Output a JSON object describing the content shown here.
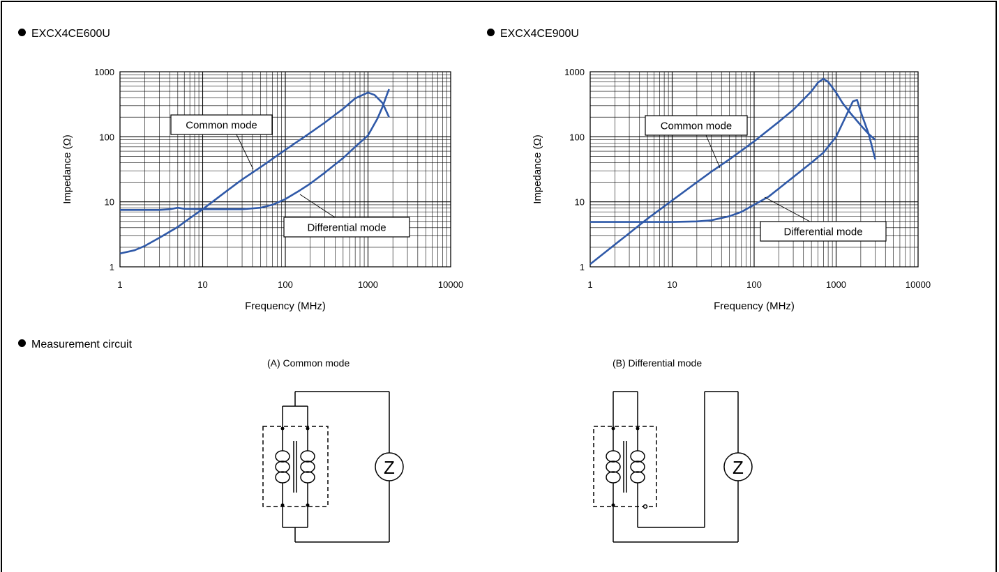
{
  "sections": {
    "chart_left_title": "EXCX4CE600U",
    "chart_right_title": "EXCX4CE900U",
    "circuit_title": "Measurement circuit"
  },
  "circuits": {
    "common_caption": "(A) Common mode",
    "differential_caption": "(B) Differential mode",
    "meter_symbol": "Z"
  },
  "colors": {
    "curve": "#2F59A8",
    "grid": "#000000"
  },
  "chart_data": [
    {
      "type": "line",
      "title": "EXCX4CE600U",
      "xlabel": "Frequency (MHz)",
      "ylabel": "Impedance (Ω)",
      "xscale": "log",
      "yscale": "log",
      "xlim": [
        1,
        10000
      ],
      "ylim": [
        1,
        1000
      ],
      "xticks": [
        "1",
        "10",
        "100",
        "1000",
        "10000"
      ],
      "yticks": [
        "1",
        "10",
        "100",
        "1000"
      ],
      "grid": true,
      "series": [
        {
          "name": "Common mode",
          "x": [
            1,
            1.5,
            2,
            3,
            5,
            7,
            10,
            20,
            30,
            50,
            100,
            200,
            300,
            500,
            700,
            1000,
            1200,
            1500,
            1800
          ],
          "y": [
            1.6,
            1.8,
            2.1,
            2.8,
            4.1,
            5.6,
            7.7,
            15,
            22,
            34,
            63,
            115,
            165,
            270,
            390,
            480,
            440,
            330,
            200
          ]
        },
        {
          "name": "Differential mode",
          "x": [
            1,
            2,
            3,
            4,
            5,
            6,
            10,
            20,
            30,
            50,
            70,
            100,
            150,
            200,
            300,
            500,
            700,
            1000,
            1300,
            1500,
            1700,
            1800
          ],
          "y": [
            7.5,
            7.5,
            7.5,
            7.7,
            8.1,
            7.8,
            7.7,
            7.7,
            7.7,
            8.1,
            9,
            11,
            15,
            19,
            28,
            47,
            70,
            105,
            190,
            290,
            450,
            540
          ]
        }
      ],
      "annotations": [
        "Common mode",
        "Differential mode"
      ]
    },
    {
      "type": "line",
      "title": "EXCX4CE900U",
      "xlabel": "Frequency (MHz)",
      "ylabel": "Impedance (Ω)",
      "xscale": "log",
      "yscale": "log",
      "xlim": [
        1,
        10000
      ],
      "ylim": [
        1,
        1000
      ],
      "xticks": [
        "1",
        "10",
        "100",
        "1000",
        "10000"
      ],
      "yticks": [
        "1",
        "10",
        "100",
        "1000"
      ],
      "grid": true,
      "series": [
        {
          "name": "Common mode",
          "x": [
            1,
            2,
            3,
            5,
            10,
            20,
            30,
            50,
            100,
            200,
            300,
            500,
            600,
            700,
            800,
            1000,
            1200,
            1500,
            2000,
            2500,
            3000
          ],
          "y": [
            1.1,
            2.2,
            3.3,
            5.5,
            10.5,
            20,
            29,
            45,
            85,
            170,
            260,
            500,
            680,
            780,
            700,
            480,
            330,
            230,
            150,
            110,
            90
          ]
        },
        {
          "name": "Differential mode",
          "x": [
            1,
            5,
            10,
            20,
            30,
            50,
            70,
            100,
            150,
            200,
            300,
            500,
            700,
            1000,
            1300,
            1600,
            1800,
            2000,
            2500,
            3000
          ],
          "y": [
            4.9,
            4.9,
            4.9,
            5,
            5.2,
            6,
            7,
            9,
            12,
            16,
            24,
            40,
            57,
            100,
            200,
            350,
            370,
            240,
            110,
            45
          ]
        }
      ],
      "annotations": [
        "Common mode",
        "Differential mode"
      ]
    }
  ]
}
